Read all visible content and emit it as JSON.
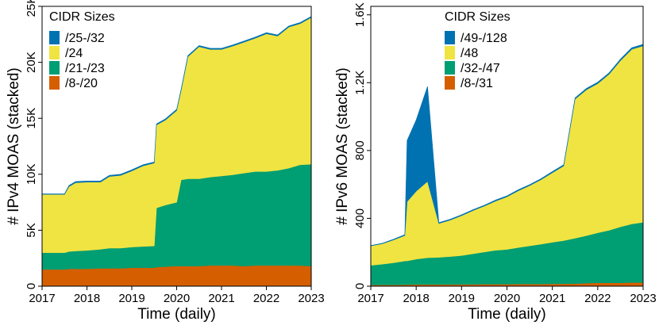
{
  "chart_data": [
    {
      "type": "area",
      "stacked": true,
      "title": "",
      "xlabel": "Time (daily)",
      "ylabel": "# IPv4 MOAS (stacked)",
      "xlim": [
        2017.0,
        2023.0
      ],
      "ylim": [
        0,
        25000
      ],
      "x_ticks": [
        2017,
        2018,
        2019,
        2020,
        2021,
        2022,
        2023
      ],
      "x_tick_labels": [
        "2017",
        "2018",
        "2019",
        "2020",
        "2021",
        "2022",
        "2023"
      ],
      "y_ticks": [
        0,
        5000,
        10000,
        15000,
        20000,
        25000
      ],
      "y_tick_labels": [
        "0",
        "5K",
        "10K",
        "15K",
        "20K",
        "25K"
      ],
      "legend_title": "CIDR Sizes",
      "legend_position": "top-left",
      "x": [
        2017.0,
        2017.5,
        2017.6,
        2017.75,
        2018.0,
        2018.3,
        2018.5,
        2018.75,
        2019.0,
        2019.25,
        2019.5,
        2019.55,
        2019.75,
        2020.0,
        2020.1,
        2020.25,
        2020.5,
        2020.75,
        2021.0,
        2021.25,
        2021.5,
        2021.75,
        2022.0,
        2022.25,
        2022.5,
        2022.75,
        2023.0
      ],
      "series": [
        {
          "name": "/8-/20",
          "color": "#d55e00",
          "values": [
            1500,
            1500,
            1550,
            1550,
            1550,
            1600,
            1600,
            1600,
            1650,
            1650,
            1650,
            1700,
            1750,
            1800,
            1800,
            1800,
            1800,
            1850,
            1850,
            1850,
            1800,
            1850,
            1850,
            1850,
            1850,
            1850,
            1800
          ]
        },
        {
          "name": "/21-/23",
          "color": "#009e73",
          "values": [
            1500,
            1500,
            1550,
            1600,
            1650,
            1700,
            1800,
            1800,
            1850,
            1900,
            1950,
            5300,
            5500,
            5700,
            7700,
            7800,
            7800,
            7900,
            8000,
            8100,
            8300,
            8400,
            8400,
            8500,
            8700,
            9000,
            9100
          ]
        },
        {
          "name": "/24",
          "color": "#f0e442",
          "values": [
            5200,
            5200,
            5800,
            6100,
            6100,
            6000,
            6400,
            6500,
            6800,
            7200,
            7400,
            7400,
            7600,
            8200,
            8000,
            10900,
            11800,
            11400,
            11300,
            11500,
            11700,
            11900,
            12300,
            12000,
            12600,
            12600,
            13100
          ]
        },
        {
          "name": "/25-/32",
          "color": "#0072b2",
          "values": [
            50,
            50,
            100,
            100,
            100,
            100,
            100,
            100,
            100,
            100,
            100,
            100,
            100,
            100,
            100,
            100,
            100,
            100,
            100,
            100,
            100,
            100,
            100,
            100,
            100,
            100,
            100
          ]
        }
      ]
    },
    {
      "type": "area",
      "stacked": true,
      "title": "",
      "xlabel": "Time (daily)",
      "ylabel": "# IPv6 MOAS (stacked)",
      "xlim": [
        2017.0,
        2023.0
      ],
      "ylim": [
        0,
        1650
      ],
      "x_ticks": [
        2017,
        2018,
        2019,
        2020,
        2021,
        2022,
        2023
      ],
      "x_tick_labels": [
        "2017",
        "2018",
        "2019",
        "2020",
        "2021",
        "2022",
        "2023"
      ],
      "y_ticks": [
        0,
        400,
        800,
        1200,
        1600
      ],
      "y_tick_labels": [
        "0",
        "400",
        "800",
        "1.2K",
        "1.6K"
      ],
      "legend_title": "CIDR Sizes",
      "legend_position": "top-right",
      "x": [
        2017.0,
        2017.25,
        2017.5,
        2017.75,
        2017.8,
        2018.0,
        2018.25,
        2018.5,
        2018.75,
        2019.0,
        2019.25,
        2019.5,
        2019.75,
        2020.0,
        2020.25,
        2020.5,
        2020.75,
        2021.0,
        2021.25,
        2021.5,
        2021.75,
        2022.0,
        2022.25,
        2022.5,
        2022.75,
        2023.0
      ],
      "series": [
        {
          "name": "/8-/31",
          "color": "#d55e00",
          "values": [
            8,
            8,
            8,
            9,
            9,
            10,
            10,
            10,
            10,
            11,
            11,
            12,
            12,
            12,
            13,
            13,
            13,
            14,
            14,
            15,
            18,
            20,
            20,
            20,
            22,
            22
          ]
        },
        {
          "name": "/32-/47",
          "color": "#009e73",
          "values": [
            115,
            122,
            130,
            140,
            140,
            150,
            158,
            160,
            165,
            170,
            180,
            190,
            200,
            205,
            215,
            225,
            235,
            245,
            255,
            268,
            280,
            295,
            310,
            330,
            345,
            355
          ]
        },
        {
          "name": "/48",
          "color": "#f0e442",
          "values": [
            115,
            120,
            135,
            150,
            350,
            400,
            450,
            200,
            215,
            235,
            255,
            270,
            290,
            310,
            335,
            355,
            380,
            410,
            440,
            820,
            860,
            880,
            920,
            980,
            1030,
            1040
          ]
        },
        {
          "name": "/49-/128",
          "color": "#0072b2",
          "values": [
            2,
            3,
            4,
            5,
            360,
            420,
            560,
            5,
            5,
            5,
            5,
            5,
            6,
            6,
            6,
            6,
            6,
            7,
            7,
            7,
            8,
            8,
            8,
            9,
            9,
            9
          ]
        }
      ]
    }
  ]
}
